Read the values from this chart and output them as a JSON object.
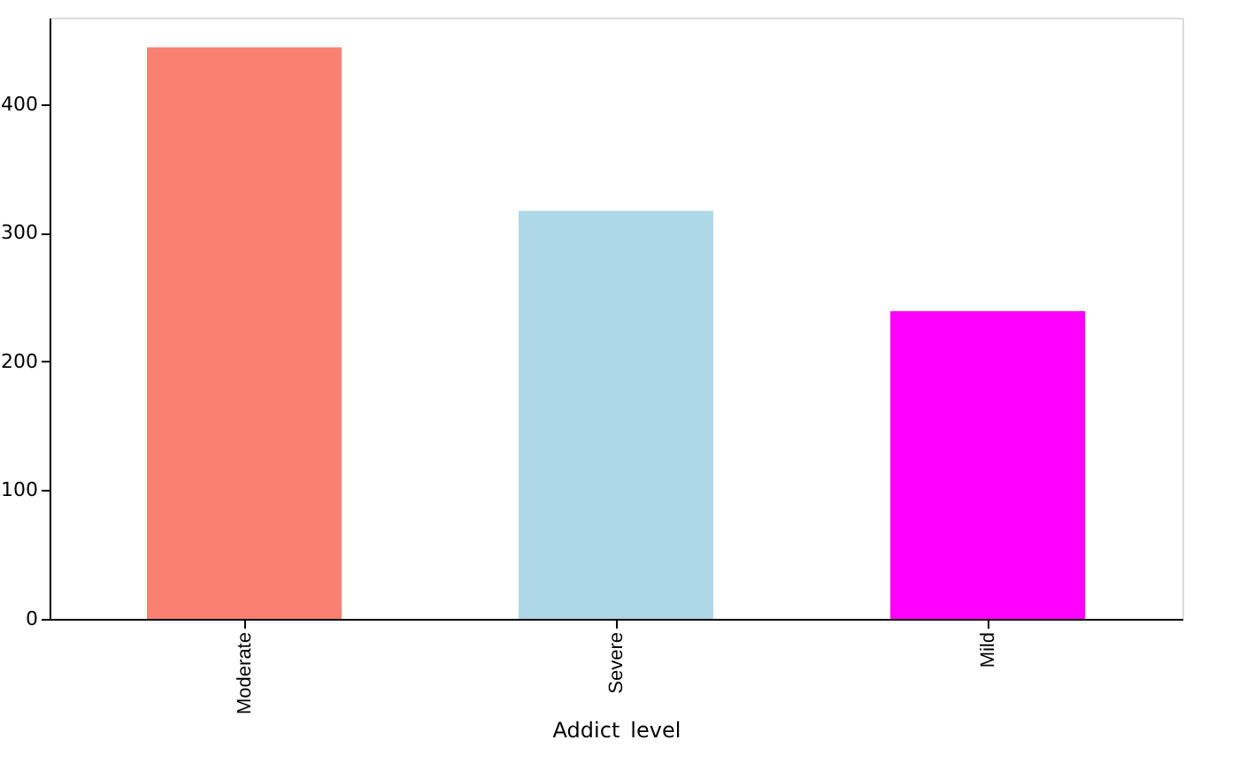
{
  "chart_data": {
    "type": "bar",
    "xlabel": "Addict_level",
    "categories": [
      "Moderate",
      "Severe",
      "Mild"
    ],
    "values": [
      444,
      317,
      239
    ],
    "colors": [
      "#fa8072",
      "#add8e6",
      "#ff00ff"
    ],
    "ylim": [
      0,
      467
    ],
    "yticks": [
      0,
      100,
      200,
      300,
      400
    ],
    "grid": false,
    "legend": false
  }
}
